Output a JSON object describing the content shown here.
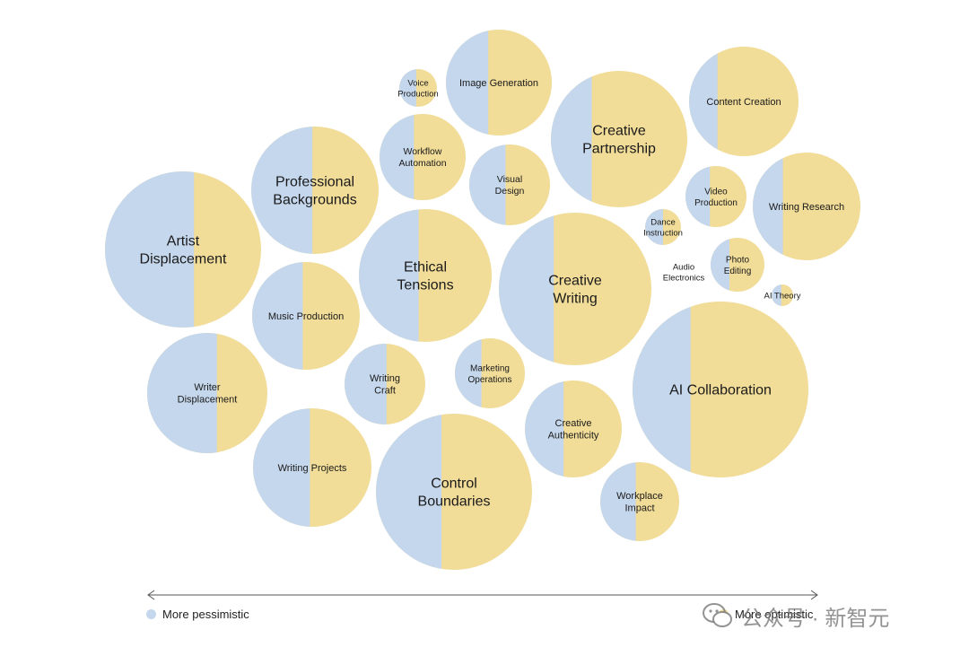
{
  "chart_data": {
    "type": "bubble",
    "colors": {
      "pessimistic": "#c5d7ec",
      "optimistic": "#f1dc98"
    },
    "bubbles": [
      {
        "label": "Image Generation",
        "size": 2.0,
        "pessimistic_share": 0.4
      },
      {
        "label": "Voice Production",
        "size": 0.25,
        "pessimistic_share": 0.45
      },
      {
        "label": "Creative Partnership",
        "size": 3.0,
        "pessimistic_share": 0.3
      },
      {
        "label": "Content Creation",
        "size": 2.0,
        "pessimistic_share": 0.26
      },
      {
        "label": "Workflow Automation",
        "size": 1.3,
        "pessimistic_share": 0.4
      },
      {
        "label": "Professional Backgrounds",
        "size": 2.6,
        "pessimistic_share": 0.48
      },
      {
        "label": "Visual Design",
        "size": 1.0,
        "pessimistic_share": 0.45
      },
      {
        "label": "Video Production",
        "size": 0.6,
        "pessimistic_share": 0.4
      },
      {
        "label": "Writing Research",
        "size": 1.8,
        "pessimistic_share": 0.28
      },
      {
        "label": "Artist Displacement",
        "size": 4.0,
        "pessimistic_share": 0.57
      },
      {
        "label": "Ethical Tensions",
        "size": 2.8,
        "pessimistic_share": 0.45
      },
      {
        "label": "Creative Writing",
        "size": 3.8,
        "pessimistic_share": 0.36
      },
      {
        "label": "Dance Instruction",
        "size": 0.2,
        "pessimistic_share": 0.5
      },
      {
        "label": "Audio Electronics",
        "size": 0.05,
        "pessimistic_share": 0.5
      },
      {
        "label": "Photo Editing",
        "size": 0.5,
        "pessimistic_share": 0.35
      },
      {
        "label": "AI Theory",
        "size": 0.05,
        "pessimistic_share": 0.45
      },
      {
        "label": "Music Production",
        "size": 1.8,
        "pessimistic_share": 0.47
      },
      {
        "label": "Writer Displacement",
        "size": 2.3,
        "pessimistic_share": 0.58
      },
      {
        "label": "Writing Craft",
        "size": 1.0,
        "pessimistic_share": 0.52
      },
      {
        "label": "Marketing Operations",
        "size": 0.8,
        "pessimistic_share": 0.38
      },
      {
        "label": "AI Collaboration",
        "size": 5.0,
        "pessimistic_share": 0.33
      },
      {
        "label": "Creative Authenticity",
        "size": 1.5,
        "pessimistic_share": 0.4
      },
      {
        "label": "Writing Projects",
        "size": 2.2,
        "pessimistic_share": 0.48
      },
      {
        "label": "Control Boundaries",
        "size": 4.0,
        "pessimistic_share": 0.42
      },
      {
        "label": "Workplace Impact",
        "size": 1.0,
        "pessimistic_share": 0.45
      }
    ]
  },
  "legend": {
    "pessimistic_label": "More pessimistic",
    "optimistic_label": "More optimistic"
  },
  "watermark": {
    "text": "公众号 · 新智元"
  }
}
